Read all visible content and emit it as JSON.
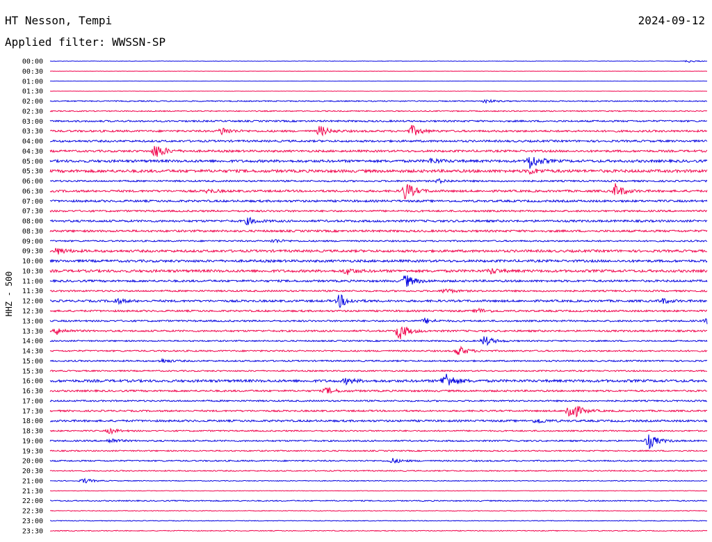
{
  "header": {
    "station": "HT Nesson, Tempi",
    "date": "2024-09-12",
    "filter": "Applied filter: WWSSN-SP"
  },
  "chart_data": {
    "type": "line",
    "ylabel": "HHZ - 500",
    "row_labels": [
      "00:00",
      "00:30",
      "01:00",
      "01:30",
      "02:00",
      "02:30",
      "03:00",
      "03:30",
      "04:00",
      "04:30",
      "05:00",
      "05:30",
      "06:00",
      "06:30",
      "07:00",
      "07:30",
      "08:00",
      "08:30",
      "09:00",
      "09:30",
      "10:00",
      "10:30",
      "11:00",
      "11:30",
      "12:00",
      "12:30",
      "13:00",
      "13:30",
      "14:00",
      "14:30",
      "15:00",
      "15:30",
      "16:00",
      "16:30",
      "17:00",
      "17:30",
      "18:00",
      "18:30",
      "19:00",
      "19:30",
      "20:00",
      "20:30",
      "21:00",
      "21:30",
      "22:00",
      "22:30",
      "23:00",
      "23:30"
    ],
    "colors": {
      "even": "#0000e0",
      "odd": "#f0004a"
    },
    "noise": [
      0.3,
      0.2,
      0.15,
      0.2,
      0.8,
      0.8,
      1.2,
      1.4,
      1.4,
      1.5,
      1.8,
      2.0,
      1.2,
      1.5,
      1.5,
      1.3,
      1.5,
      1.5,
      1.1,
      1.7,
      1.7,
      1.8,
      1.5,
      1.2,
      1.5,
      1.3,
      1.2,
      1.3,
      1.0,
      1.1,
      1.1,
      1.0,
      1.8,
      1.3,
      1.1,
      1.2,
      1.4,
      1.0,
      1.1,
      0.9,
      1.0,
      0.8,
      0.6,
      0.4,
      0.8,
      0.5,
      0.5,
      0.6
    ],
    "events": [
      {
        "row": 0,
        "x": 0.97,
        "amp": 2
      },
      {
        "row": 4,
        "x": 0.66,
        "amp": 3
      },
      {
        "row": 7,
        "x": 0.26,
        "amp": 6
      },
      {
        "row": 7,
        "x": 0.41,
        "amp": 8
      },
      {
        "row": 7,
        "x": 0.55,
        "amp": 8
      },
      {
        "row": 9,
        "x": 0.16,
        "amp": 12
      },
      {
        "row": 10,
        "x": 0.73,
        "amp": 12
      },
      {
        "row": 10,
        "x": 0.58,
        "amp": 4
      },
      {
        "row": 11,
        "x": 0.73,
        "amp": 4
      },
      {
        "row": 12,
        "x": 0.59,
        "amp": 3
      },
      {
        "row": 13,
        "x": 0.54,
        "amp": 14
      },
      {
        "row": 13,
        "x": 0.86,
        "amp": 10
      },
      {
        "row": 13,
        "x": 0.24,
        "amp": 3
      },
      {
        "row": 16,
        "x": 0.3,
        "amp": 5
      },
      {
        "row": 18,
        "x": 0.34,
        "amp": 3
      },
      {
        "row": 19,
        "x": 0.01,
        "amp": 5
      },
      {
        "row": 21,
        "x": 0.45,
        "amp": 5
      },
      {
        "row": 21,
        "x": 0.67,
        "amp": 4
      },
      {
        "row": 22,
        "x": 0.54,
        "amp": 10
      },
      {
        "row": 23,
        "x": 0.6,
        "amp": 4
      },
      {
        "row": 24,
        "x": 0.44,
        "amp": 10
      },
      {
        "row": 24,
        "x": 0.1,
        "amp": 4
      },
      {
        "row": 24,
        "x": 0.93,
        "amp": 4
      },
      {
        "row": 25,
        "x": 0.65,
        "amp": 4
      },
      {
        "row": 26,
        "x": 0.57,
        "amp": 4
      },
      {
        "row": 26,
        "x": 1.0,
        "amp": 5
      },
      {
        "row": 27,
        "x": 0.53,
        "amp": 14
      },
      {
        "row": 27,
        "x": 0.01,
        "amp": 5
      },
      {
        "row": 28,
        "x": 0.66,
        "amp": 8
      },
      {
        "row": 29,
        "x": 0.62,
        "amp": 8
      },
      {
        "row": 30,
        "x": 0.17,
        "amp": 3
      },
      {
        "row": 32,
        "x": 0.6,
        "amp": 14
      },
      {
        "row": 32,
        "x": 0.45,
        "amp": 4
      },
      {
        "row": 33,
        "x": 0.42,
        "amp": 5
      },
      {
        "row": 35,
        "x": 0.79,
        "amp": 18
      },
      {
        "row": 36,
        "x": 0.74,
        "amp": 4
      },
      {
        "row": 37,
        "x": 0.09,
        "amp": 4
      },
      {
        "row": 38,
        "x": 0.91,
        "amp": 12
      },
      {
        "row": 38,
        "x": 0.09,
        "amp": 4
      },
      {
        "row": 40,
        "x": 0.52,
        "amp": 4
      },
      {
        "row": 42,
        "x": 0.05,
        "amp": 4
      }
    ]
  }
}
